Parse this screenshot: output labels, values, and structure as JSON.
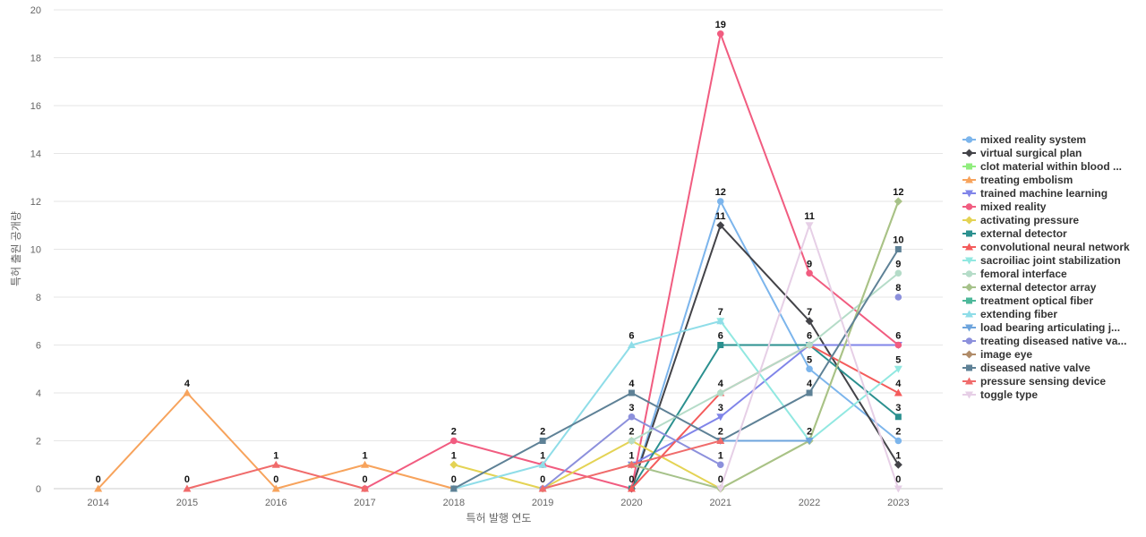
{
  "chart_data": {
    "type": "line",
    "title": "",
    "xlabel": "특허 발행 연도",
    "ylabel": "특허 출원 공개량",
    "x": [
      "2014",
      "2015",
      "2016",
      "2017",
      "2018",
      "2019",
      "2020",
      "2021",
      "2022",
      "2023"
    ],
    "ylim": [
      0,
      20
    ],
    "yticks": [
      0,
      2,
      4,
      6,
      8,
      10,
      12,
      14,
      16,
      18,
      20
    ],
    "grid": true,
    "legend_position": "right",
    "series": [
      {
        "name": "mixed reality system",
        "color": "#7cb5ec",
        "marker": "circle",
        "values": [
          null,
          null,
          null,
          null,
          null,
          null,
          0,
          12,
          5,
          2
        ]
      },
      {
        "name": "virtual surgical plan",
        "color": "#434348",
        "marker": "diamond",
        "values": [
          null,
          null,
          null,
          null,
          null,
          null,
          0,
          11,
          7,
          1
        ]
      },
      {
        "name": "clot material within blood ...",
        "color": "#90ed7d",
        "marker": "square",
        "values": [
          null,
          null,
          null,
          null,
          null,
          null,
          null,
          null,
          null,
          null
        ]
      },
      {
        "name": "treating embolism",
        "color": "#f7a35c",
        "marker": "triangle",
        "values": [
          0,
          4,
          0,
          1,
          0,
          null,
          null,
          null,
          null,
          null
        ]
      },
      {
        "name": "trained machine learning",
        "color": "#8085e9",
        "marker": "triangle-down",
        "values": [
          null,
          null,
          null,
          null,
          null,
          null,
          1,
          3,
          6,
          6
        ]
      },
      {
        "name": "mixed reality",
        "color": "#f15c80",
        "marker": "circle",
        "values": [
          null,
          null,
          null,
          0,
          2,
          1,
          0,
          19,
          9,
          6
        ]
      },
      {
        "name": "activating pressure",
        "color": "#e4d354",
        "marker": "diamond",
        "values": [
          null,
          null,
          null,
          null,
          1,
          0,
          2,
          0,
          2,
          12
        ]
      },
      {
        "name": "external detector",
        "color": "#2b908f",
        "marker": "square",
        "values": [
          null,
          null,
          null,
          null,
          null,
          null,
          0,
          6,
          6,
          3
        ]
      },
      {
        "name": "convolutional neural network",
        "color": "#f45b5b",
        "marker": "triangle",
        "values": [
          null,
          null,
          null,
          null,
          null,
          null,
          0,
          4,
          6,
          4
        ]
      },
      {
        "name": "sacroiliac joint stabilization",
        "color": "#91e8e1",
        "marker": "triangle-down",
        "values": [
          null,
          null,
          null,
          null,
          null,
          null,
          null,
          7,
          2,
          5
        ]
      },
      {
        "name": "femoral interface",
        "color": "#b5dcc8",
        "marker": "circle",
        "values": [
          null,
          null,
          null,
          null,
          null,
          null,
          2,
          4,
          6,
          9
        ]
      },
      {
        "name": "external detector array",
        "color": "#a6c28a",
        "marker": "diamond",
        "values": [
          null,
          null,
          null,
          null,
          null,
          null,
          1,
          0,
          2,
          12
        ]
      },
      {
        "name": "treatment optical fiber",
        "color": "#4db89a",
        "marker": "square",
        "values": [
          null,
          null,
          null,
          null,
          null,
          null,
          null,
          null,
          null,
          null
        ]
      },
      {
        "name": "extending fiber",
        "color": "#8fdde8",
        "marker": "triangle",
        "values": [
          null,
          null,
          null,
          null,
          0,
          1,
          6,
          7,
          null,
          null
        ]
      },
      {
        "name": "load bearing articulating j...",
        "color": "#6da4dc",
        "marker": "triangle-down",
        "values": [
          null,
          null,
          null,
          null,
          null,
          null,
          null,
          2,
          2,
          null
        ]
      },
      {
        "name": "treating diseased native va...",
        "color": "#8c90dc",
        "marker": "circle",
        "values": [
          null,
          null,
          null,
          null,
          null,
          0,
          3,
          1,
          null,
          8
        ]
      },
      {
        "name": "image eye",
        "color": "#b08b68",
        "marker": "diamond",
        "values": [
          null,
          null,
          null,
          null,
          null,
          null,
          null,
          null,
          null,
          null
        ]
      },
      {
        "name": "diseased native valve",
        "color": "#5e8196",
        "marker": "square",
        "values": [
          null,
          null,
          null,
          null,
          0,
          2,
          4,
          2,
          4,
          10
        ]
      },
      {
        "name": "pressure sensing device",
        "color": "#f06b6b",
        "marker": "triangle",
        "values": [
          null,
          0,
          1,
          0,
          null,
          0,
          1,
          2,
          null,
          null
        ]
      },
      {
        "name": "toggle type",
        "color": "#e6cfe6",
        "marker": "triangle-down",
        "values": [
          null,
          null,
          null,
          null,
          null,
          null,
          null,
          0,
          11,
          0
        ]
      }
    ]
  }
}
